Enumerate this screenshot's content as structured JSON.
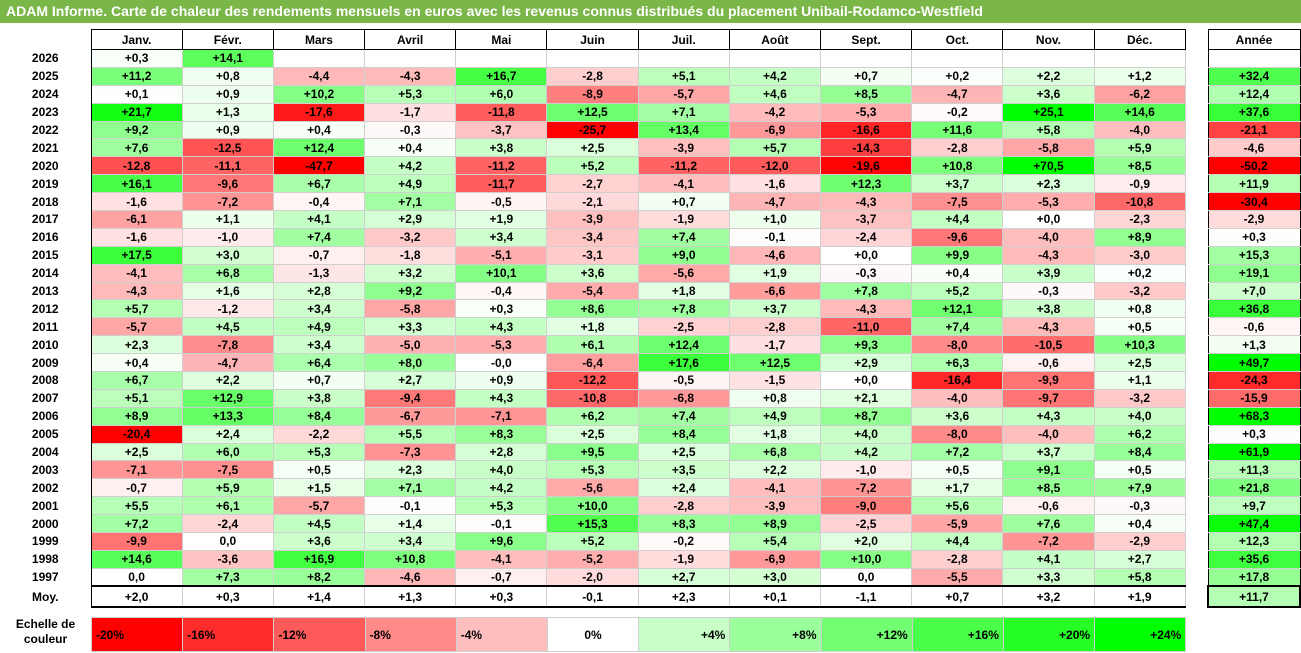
{
  "title": "ADAM Informe. Carte de chaleur des rendements mensuels en euros avec les revenus connus distribués du placement Unibail-Rodamco-Westfield",
  "chart_data": {
    "type": "heatmap",
    "columns": [
      "Janv.",
      "Févr.",
      "Mars",
      "Avril",
      "Mai",
      "Juin",
      "Juil.",
      "Août",
      "Sept.",
      "Oct.",
      "Nov.",
      "Déc."
    ],
    "annual_header": "Année",
    "rows": [
      {
        "year": "2026",
        "values": [
          "+0,3",
          "+14,1",
          "",
          "",
          "",
          "",
          "",
          "",
          "",
          "",
          "",
          ""
        ],
        "annual": ""
      },
      {
        "year": "2025",
        "values": [
          "+11,2",
          "+0,8",
          "-4,4",
          "-4,3",
          "+16,7",
          "-2,8",
          "+5,1",
          "+4,2",
          "+0,7",
          "+0,2",
          "+2,2",
          "+1,2"
        ],
        "annual": "+32,4"
      },
      {
        "year": "2024",
        "values": [
          "+0,1",
          "+0,9",
          "+10,2",
          "+5,3",
          "+6,0",
          "-8,9",
          "-5,7",
          "+4,6",
          "+8,5",
          "-4,7",
          "+3,6",
          "-6,2"
        ],
        "annual": "+12,4"
      },
      {
        "year": "2023",
        "values": [
          "+21,7",
          "+1,3",
          "-17,6",
          "-1,7",
          "-11,8",
          "+12,5",
          "+7,1",
          "-4,2",
          "-5,3",
          "-0,2",
          "+25,1",
          "+14,6"
        ],
        "annual": "+37,6"
      },
      {
        "year": "2022",
        "values": [
          "+9,2",
          "+0,9",
          "+0,4",
          "-0,3",
          "-3,7",
          "-25,7",
          "+13,4",
          "-6,9",
          "-16,6",
          "+11,6",
          "+5,8",
          "-4,0"
        ],
        "annual": "-21,1"
      },
      {
        "year": "2021",
        "values": [
          "+7,6",
          "-12,5",
          "+12,4",
          "+0,4",
          "+3,8",
          "+2,5",
          "-3,9",
          "+5,7",
          "-14,3",
          "-2,8",
          "-5,8",
          "+5,9"
        ],
        "annual": "-4,6"
      },
      {
        "year": "2020",
        "values": [
          "-12,8",
          "-11,1",
          "-47,7",
          "+4,2",
          "-11,2",
          "+5,2",
          "-11,2",
          "-12,0",
          "-19,6",
          "+10,8",
          "+70,5",
          "+8,5"
        ],
        "annual": "-50,2"
      },
      {
        "year": "2019",
        "values": [
          "+16,1",
          "-9,6",
          "+6,7",
          "+4,9",
          "-11,7",
          "-2,7",
          "-4,1",
          "-1,6",
          "+12,3",
          "+3,7",
          "+2,3",
          "-0,9"
        ],
        "annual": "+11,9"
      },
      {
        "year": "2018",
        "values": [
          "-1,6",
          "-7,2",
          "-0,4",
          "+7,1",
          "-0,5",
          "-2,1",
          "+0,7",
          "-4,7",
          "-4,3",
          "-7,5",
          "-5,3",
          "-10,8"
        ],
        "annual": "-30,4"
      },
      {
        "year": "2017",
        "values": [
          "-6,1",
          "+1,1",
          "+4,1",
          "+2,9",
          "+1,9",
          "-3,9",
          "-1,9",
          "+1,0",
          "-3,7",
          "+4,4",
          "+0,0",
          "-2,3"
        ],
        "annual": "-2,9"
      },
      {
        "year": "2016",
        "values": [
          "-1,6",
          "-1,0",
          "+7,4",
          "-3,2",
          "+3,4",
          "-3,4",
          "+7,4",
          "-0,1",
          "-2,4",
          "-9,6",
          "-4,0",
          "+8,9"
        ],
        "annual": "+0,3"
      },
      {
        "year": "2015",
        "values": [
          "+17,5",
          "+3,0",
          "-0,7",
          "-1,8",
          "-5,1",
          "-3,1",
          "+9,0",
          "-4,6",
          "+0,0",
          "+9,9",
          "-4,3",
          "-3,0"
        ],
        "annual": "+15,3"
      },
      {
        "year": "2014",
        "values": [
          "-4,1",
          "+6,8",
          "-1,3",
          "+3,2",
          "+10,1",
          "+3,6",
          "-5,6",
          "+1,9",
          "-0,3",
          "+0,4",
          "+3,9",
          "+0,2"
        ],
        "annual": "+19,1"
      },
      {
        "year": "2013",
        "values": [
          "-4,3",
          "+1,6",
          "+2,8",
          "+9,2",
          "-0,4",
          "-5,4",
          "+1,8",
          "-6,6",
          "+7,8",
          "+5,2",
          "-0,3",
          "-3,2"
        ],
        "annual": "+7,0"
      },
      {
        "year": "2012",
        "values": [
          "+5,7",
          "-1,2",
          "+3,4",
          "-5,8",
          "+0,3",
          "+8,6",
          "+7,8",
          "+3,7",
          "-4,3",
          "+12,1",
          "+3,8",
          "+0,8"
        ],
        "annual": "+36,8"
      },
      {
        "year": "2011",
        "values": [
          "-5,7",
          "+4,5",
          "+4,9",
          "+3,3",
          "+4,3",
          "+1,8",
          "-2,5",
          "-2,8",
          "-11,0",
          "+7,4",
          "-4,3",
          "+0,5"
        ],
        "annual": "-0,6"
      },
      {
        "year": "2010",
        "values": [
          "+2,3",
          "-7,8",
          "+3,4",
          "-5,0",
          "-5,3",
          "+6,1",
          "+12,4",
          "-1,7",
          "+9,3",
          "-8,0",
          "-10,5",
          "+10,3"
        ],
        "annual": "+1,3"
      },
      {
        "year": "2009",
        "values": [
          "+0,4",
          "-4,7",
          "+6,4",
          "+8,0",
          "-0,0",
          "-6,4",
          "+17,6",
          "+12,5",
          "+2,9",
          "+6,3",
          "-0,6",
          "+2,5"
        ],
        "annual": "+49,7"
      },
      {
        "year": "2008",
        "values": [
          "+6,7",
          "+2,2",
          "+0,7",
          "+2,7",
          "+0,9",
          "-12,2",
          "-0,5",
          "-1,5",
          "+0,0",
          "-16,4",
          "-9,9",
          "+1,1"
        ],
        "annual": "-24,3"
      },
      {
        "year": "2007",
        "values": [
          "+5,1",
          "+12,9",
          "+3,8",
          "-9,4",
          "+4,3",
          "-10,8",
          "-6,8",
          "+0,8",
          "+2,1",
          "-4,0",
          "-9,7",
          "-3,2"
        ],
        "annual": "-15,9"
      },
      {
        "year": "2006",
        "values": [
          "+8,9",
          "+13,3",
          "+8,4",
          "-6,7",
          "-7,1",
          "+6,2",
          "+7,4",
          "+4,9",
          "+8,7",
          "+3,6",
          "+4,3",
          "+4,0"
        ],
        "annual": "+68,3"
      },
      {
        "year": "2005",
        "values": [
          "-20,4",
          "+2,4",
          "-2,2",
          "+5,5",
          "+8,3",
          "+2,5",
          "+8,4",
          "+1,8",
          "+4,0",
          "-8,0",
          "-4,0",
          "+6,2"
        ],
        "annual": "+0,3"
      },
      {
        "year": "2004",
        "values": [
          "+2,5",
          "+6,0",
          "+5,3",
          "-7,3",
          "+2,8",
          "+9,5",
          "+2,5",
          "+6,8",
          "+4,2",
          "+7,2",
          "+3,7",
          "+8,4"
        ],
        "annual": "+61,9"
      },
      {
        "year": "2003",
        "values": [
          "-7,1",
          "-7,5",
          "+0,5",
          "+2,3",
          "+4,0",
          "+5,3",
          "+3,5",
          "+2,2",
          "-1,0",
          "+0,5",
          "+9,1",
          "+0,5"
        ],
        "annual": "+11,3"
      },
      {
        "year": "2002",
        "values": [
          "-0,7",
          "+5,9",
          "+1,5",
          "+7,1",
          "+4,2",
          "-5,6",
          "+2,4",
          "-4,1",
          "-7,2",
          "+1,7",
          "+8,5",
          "+7,9"
        ],
        "annual": "+21,8"
      },
      {
        "year": "2001",
        "values": [
          "+5,5",
          "+6,1",
          "-5,7",
          "-0,1",
          "+5,3",
          "+10,0",
          "-2,8",
          "-3,9",
          "-9,0",
          "+5,6",
          "-0,6",
          "-0,3"
        ],
        "annual": "+9,7"
      },
      {
        "year": "2000",
        "values": [
          "+7,2",
          "-2,4",
          "+4,5",
          "+1,4",
          "-0,1",
          "+15,3",
          "+8,3",
          "+8,9",
          "-2,5",
          "-5,9",
          "+7,6",
          "+0,4"
        ],
        "annual": "+47,4"
      },
      {
        "year": "1999",
        "values": [
          "-9,9",
          "0,0",
          "+3,6",
          "+3,4",
          "+9,6",
          "+5,2",
          "-0,2",
          "+5,4",
          "+2,0",
          "+4,4",
          "-7,2",
          "-2,9"
        ],
        "annual": "+12,3"
      },
      {
        "year": "1998",
        "values": [
          "+14,6",
          "-3,6",
          "+16,9",
          "+10,8",
          "-4,1",
          "-5,2",
          "-1,9",
          "-6,9",
          "+10,0",
          "-2,8",
          "+4,1",
          "+2,7"
        ],
        "annual": "+35,6"
      },
      {
        "year": "1997",
        "values": [
          "0,0",
          "+7,3",
          "+8,2",
          "-4,6",
          "-0,7",
          "-2,0",
          "+2,7",
          "+3,0",
          "0,0",
          "-5,5",
          "+3,3",
          "+5,8"
        ],
        "annual": "+17,8"
      }
    ],
    "average": {
      "label": "Moy.",
      "values": [
        "+2,0",
        "+0,3",
        "+1,4",
        "+1,3",
        "+0,3",
        "-0,1",
        "+2,3",
        "+0,1",
        "-1,1",
        "+0,7",
        "+3,2",
        "+1,9"
      ],
      "annual": "+11,7"
    },
    "color_scale": {
      "label": "Echelle de\ncouleur",
      "stops": [
        "-20%",
        "-16%",
        "-12%",
        "-8%",
        "-4%",
        "0%",
        "+4%",
        "+8%",
        "+12%",
        "+16%",
        "+20%",
        "+24%"
      ],
      "negative_color": "#ff0000",
      "neutral_color": "#ffffff",
      "positive_color": "#00ff00"
    }
  }
}
